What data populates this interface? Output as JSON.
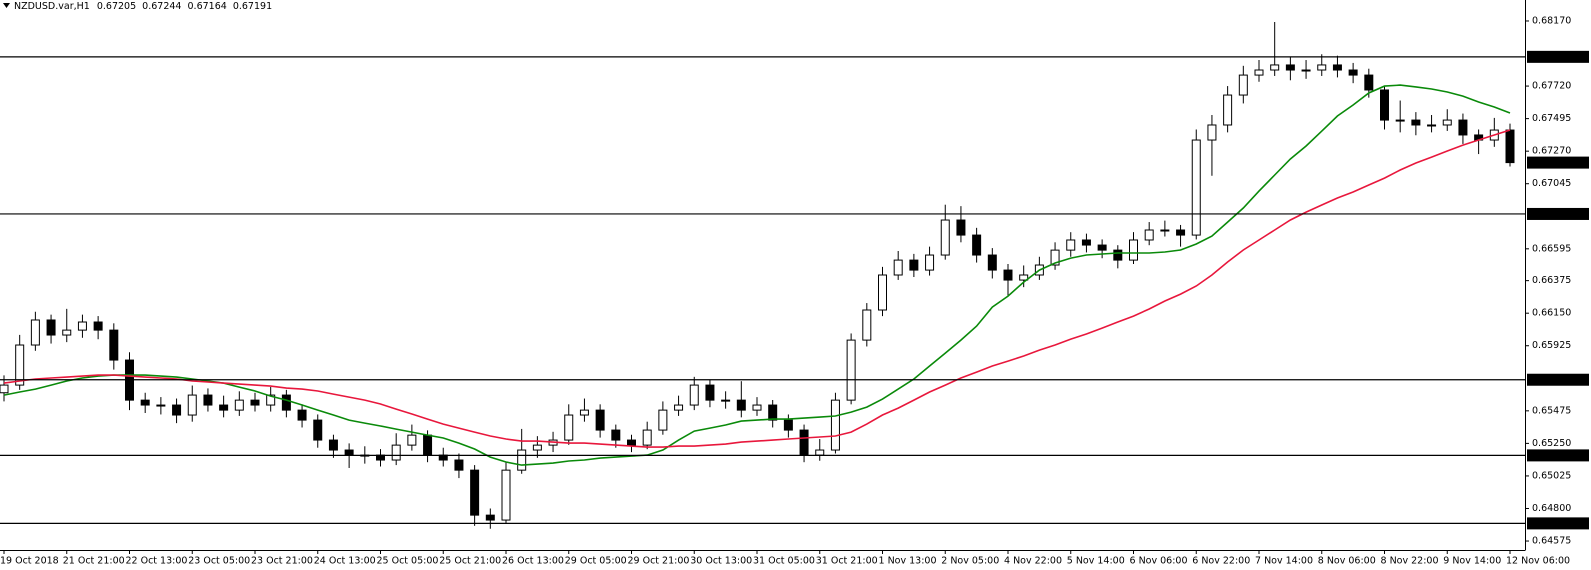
{
  "chart_data": {
    "type": "candlestick",
    "title": "NZDUSD.var,H1",
    "quote": {
      "open": 0.67205,
      "high": 0.67244,
      "low": 0.67164,
      "close": 0.67191
    },
    "categories": [
      "19 Oct 2018",
      null,
      null,
      null,
      "21 Oct 21:00",
      null,
      null,
      null,
      "22 Oct 13:00",
      null,
      null,
      null,
      "23 Oct 05:00",
      null,
      null,
      null,
      "23 Oct 21:00",
      null,
      null,
      null,
      "24 Oct 13:00",
      null,
      null,
      null,
      "25 Oct 05:00",
      null,
      null,
      null,
      "25 Oct 21:00",
      null,
      null,
      null,
      "26 Oct 13:00",
      null,
      null,
      null,
      "29 Oct 05:00",
      null,
      null,
      null,
      "29 Oct 21:00",
      null,
      null,
      null,
      "30 Oct 13:00",
      null,
      null,
      null,
      "31 Oct 05:00",
      null,
      null,
      null,
      "31 Oct 21:00",
      null,
      null,
      null,
      "1 Nov 13:00",
      null,
      null,
      null,
      "2 Nov 05:00",
      null,
      null,
      null,
      "4 Nov 22:00",
      null,
      null,
      null,
      "5 Nov 14:00",
      null,
      null,
      null,
      "6 Nov 06:00",
      null,
      null,
      null,
      "6 Nov 22:00",
      null,
      null,
      null,
      "7 Nov 14:00",
      null,
      null,
      null,
      "8 Nov 06:00",
      null,
      null,
      null,
      "8 Nov 22:00",
      null,
      null,
      null,
      "9 Nov 14:00",
      null,
      null,
      null,
      "12 Nov 06:00"
    ],
    "open": [
      0.656,
      0.65653,
      0.6593,
      0.66103,
      0.65999,
      0.66033,
      0.66089,
      0.66033,
      0.65826,
      0.65549,
      0.65515,
      0.65515,
      0.65446,
      0.65584,
      0.65515,
      0.6548,
      0.65549,
      0.65515,
      0.65584,
      0.6548,
      0.65411,
      0.65273,
      0.65204,
      0.65169,
      0.65169,
      0.65135,
      0.65238,
      0.65307,
      0.65169,
      0.65135,
      0.65065,
      0.64754,
      0.6472,
      0.65065,
      0.65204,
      0.65238,
      0.65273,
      0.65446,
      0.6548,
      0.65342,
      0.65273,
      0.65238,
      0.65342,
      0.6548,
      0.65515,
      0.65653,
      0.65549,
      0.65549,
      0.6548,
      0.65515,
      0.65411,
      0.65342,
      0.65169,
      0.65204,
      0.65549,
      0.65964,
      0.66172,
      0.66414,
      0.66517,
      0.66448,
      0.66552,
      0.66794,
      0.6669,
      0.66552,
      0.66448,
      0.66379,
      0.66414,
      0.66483,
      0.66586,
      0.66656,
      0.66621,
      0.66586,
      0.66517,
      0.66656,
      0.66725,
      0.66725,
      0.6669,
      0.67347,
      0.67451,
      0.67658,
      0.67796,
      0.67831,
      0.67866,
      0.67831,
      0.67831,
      0.67866,
      0.67831,
      0.67796,
      0.67693,
      0.67485,
      0.67485,
      0.67451,
      0.67451,
      0.67485,
      0.67382,
      0.67347,
      0.67416
    ],
    "high": [
      0.6572,
      0.66,
      0.6616,
      0.6614,
      0.6618,
      0.6614,
      0.6613,
      0.6608,
      0.6588,
      0.656,
      0.6557,
      0.6556,
      0.6565,
      0.6563,
      0.6558,
      0.6561,
      0.656,
      0.6564,
      0.6562,
      0.6552,
      0.6545,
      0.6531,
      0.6525,
      0.6523,
      0.6521,
      0.6532,
      0.6538,
      0.6534,
      0.6522,
      0.6518,
      0.651,
      0.648,
      0.6512,
      0.6535,
      0.653,
      0.6533,
      0.6552,
      0.6556,
      0.6552,
      0.6538,
      0.6531,
      0.654,
      0.6554,
      0.6558,
      0.6571,
      0.6569,
      0.6561,
      0.6568,
      0.6557,
      0.6555,
      0.6545,
      0.6538,
      0.6528,
      0.656,
      0.6601,
      0.6622,
      0.6647,
      0.6658,
      0.6656,
      0.6661,
      0.669,
      0.6689,
      0.6674,
      0.666,
      0.6649,
      0.6648,
      0.6654,
      0.6664,
      0.6671,
      0.667,
      0.6666,
      0.6662,
      0.6671,
      0.6678,
      0.6679,
      0.6676,
      0.6742,
      0.6752,
      0.6772,
      0.6786,
      0.679,
      0.68163,
      0.6792,
      0.679,
      0.6794,
      0.6793,
      0.6788,
      0.6784,
      0.6772,
      0.6762,
      0.6754,
      0.6752,
      0.6756,
      0.6753,
      0.6742,
      0.675,
      0.6746
    ],
    "low": [
      0.6554,
      0.6562,
      0.6589,
      0.6594,
      0.6595,
      0.6598,
      0.6597,
      0.6576,
      0.6548,
      0.6546,
      0.6545,
      0.6539,
      0.654,
      0.6547,
      0.6543,
      0.6544,
      0.6547,
      0.6547,
      0.6543,
      0.6536,
      0.6522,
      0.6515,
      0.6508,
      0.6511,
      0.6509,
      0.651,
      0.652,
      0.6512,
      0.6509,
      0.6501,
      0.6468,
      0.6466,
      0.647,
      0.6504,
      0.6515,
      0.6519,
      0.6524,
      0.654,
      0.6529,
      0.6522,
      0.6519,
      0.6521,
      0.6531,
      0.6544,
      0.6548,
      0.655,
      0.6549,
      0.6543,
      0.6544,
      0.6536,
      0.6529,
      0.6512,
      0.6513,
      0.6518,
      0.6552,
      0.6592,
      0.6613,
      0.6638,
      0.664,
      0.6641,
      0.6652,
      0.6664,
      0.665,
      0.6639,
      0.6627,
      0.6633,
      0.6638,
      0.6645,
      0.6654,
      0.6657,
      0.6653,
      0.6646,
      0.6649,
      0.6662,
      0.6668,
      0.6661,
      0.6666,
      0.671,
      0.674,
      0.676,
      0.6775,
      0.6779,
      0.6776,
      0.6777,
      0.6779,
      0.6778,
      0.6774,
      0.6764,
      0.6742,
      0.674,
      0.6738,
      0.674,
      0.6741,
      0.6732,
      0.6725,
      0.673,
      0.67164
    ],
    "close": [
      0.65653,
      0.6593,
      0.66103,
      0.65999,
      0.66033,
      0.66089,
      0.66033,
      0.65826,
      0.65549,
      0.65515,
      0.65515,
      0.65446,
      0.65584,
      0.65515,
      0.6548,
      0.65549,
      0.65515,
      0.65584,
      0.6548,
      0.65411,
      0.65273,
      0.65204,
      0.65169,
      0.65169,
      0.65135,
      0.65238,
      0.65307,
      0.65169,
      0.65135,
      0.65065,
      0.64754,
      0.6472,
      0.65065,
      0.65204,
      0.65238,
      0.65273,
      0.65446,
      0.6548,
      0.65342,
      0.65273,
      0.65238,
      0.65342,
      0.6548,
      0.65515,
      0.65653,
      0.65549,
      0.65549,
      0.6548,
      0.65515,
      0.65411,
      0.65342,
      0.65169,
      0.65204,
      0.65549,
      0.65964,
      0.66172,
      0.66414,
      0.66517,
      0.66448,
      0.66552,
      0.66794,
      0.6669,
      0.66552,
      0.66448,
      0.66379,
      0.66414,
      0.66483,
      0.66586,
      0.66656,
      0.66621,
      0.66586,
      0.66517,
      0.66656,
      0.66725,
      0.66725,
      0.6669,
      0.67347,
      0.67451,
      0.67658,
      0.67796,
      0.67831,
      0.67866,
      0.67831,
      0.67831,
      0.67866,
      0.67831,
      0.67796,
      0.67693,
      0.67485,
      0.67485,
      0.67451,
      0.67451,
      0.67485,
      0.67382,
      0.67347,
      0.67416,
      0.67191
    ],
    "up_color": "#ffffff",
    "down_color": "#000000",
    "ma": [
      {
        "color": "#0a8a0a",
        "values": [
          0.65584,
          0.65605,
          0.65625,
          0.65653,
          0.65681,
          0.65702,
          0.65715,
          0.65722,
          0.65722,
          0.65722,
          0.65715,
          0.65708,
          0.65695,
          0.65681,
          0.65667,
          0.65639,
          0.65612,
          0.65577,
          0.65549,
          0.65515,
          0.6548,
          0.65446,
          0.65411,
          0.6539,
          0.6537,
          0.65349,
          0.65328,
          0.65307,
          0.65287,
          0.65252,
          0.65211,
          0.65155,
          0.65121,
          0.651,
          0.65107,
          0.65114,
          0.65128,
          0.65135,
          0.65148,
          0.65155,
          0.65162,
          0.65169,
          0.65204,
          0.65273,
          0.65335,
          0.65356,
          0.65377,
          0.65404,
          0.65411,
          0.65418,
          0.65418,
          0.65425,
          0.65432,
          0.65439,
          0.65466,
          0.65501,
          0.65556,
          0.65625,
          0.65695,
          0.65785,
          0.65874,
          0.65964,
          0.66061,
          0.66192,
          0.66268,
          0.66365,
          0.66448,
          0.66497,
          0.66531,
          0.66552,
          0.66559,
          0.66566,
          0.66566,
          0.66566,
          0.66573,
          0.66587,
          0.66628,
          0.66683,
          0.6678,
          0.66877,
          0.66994,
          0.67105,
          0.67216,
          0.67306,
          0.67409,
          0.67513,
          0.67589,
          0.67672,
          0.6772,
          0.67727,
          0.67714,
          0.677,
          0.67679,
          0.67651,
          0.6761,
          0.67575,
          0.67534
        ]
      },
      {
        "color": "#e8173c",
        "values": [
          0.65667,
          0.65681,
          0.65695,
          0.65702,
          0.65708,
          0.65715,
          0.65722,
          0.65722,
          0.65715,
          0.65708,
          0.65702,
          0.65695,
          0.65681,
          0.65674,
          0.65667,
          0.6566,
          0.65653,
          0.65646,
          0.65632,
          0.65625,
          0.65612,
          0.65591,
          0.6557,
          0.65549,
          0.65522,
          0.65487,
          0.65453,
          0.65418,
          0.65383,
          0.65356,
          0.65328,
          0.65301,
          0.6528,
          0.65266,
          0.65266,
          0.65259,
          0.65252,
          0.65252,
          0.65245,
          0.65238,
          0.65231,
          0.65224,
          0.65224,
          0.65231,
          0.65231,
          0.65238,
          0.65245,
          0.65259,
          0.65266,
          0.65273,
          0.6528,
          0.65287,
          0.65294,
          0.65301,
          0.65328,
          0.65383,
          0.65446,
          0.65494,
          0.65549,
          0.65605,
          0.65653,
          0.65702,
          0.65743,
          0.65785,
          0.65819,
          0.65854,
          0.65895,
          0.6593,
          0.65971,
          0.66006,
          0.66047,
          0.66089,
          0.6613,
          0.66179,
          0.66234,
          0.66282,
          0.66338,
          0.66414,
          0.66504,
          0.66587,
          0.66656,
          0.66725,
          0.66794,
          0.66849,
          0.66898,
          0.66946,
          0.66988,
          0.67036,
          0.67084,
          0.6714,
          0.67188,
          0.67229,
          0.67271,
          0.67312,
          0.67347,
          0.67382,
          0.67416
        ]
      }
    ],
    "levels": [
      0.67922,
      0.66836,
      {
        "value": 0.6569,
        "label": "0.65690"
      },
      0.65167,
      0.64697
    ],
    "ylim": [
      0.64513,
      0.68315
    ],
    "yticks": [
      {
        "value": 0.6817,
        "label": "0.68170"
      },
      {
        "value": 0.6772,
        "label": "0.67720"
      },
      0.67495,
      {
        "value": 0.6727,
        "label": "0.67270"
      },
      0.67045,
      0.66595,
      0.66375,
      {
        "value": 0.6615,
        "label": "0.66150"
      },
      0.65925,
      0.65475,
      {
        "value": 0.6525,
        "label": "0.65250"
      },
      0.65025,
      {
        "value": 0.648,
        "label": "0.64800"
      },
      0.64575
    ]
  }
}
